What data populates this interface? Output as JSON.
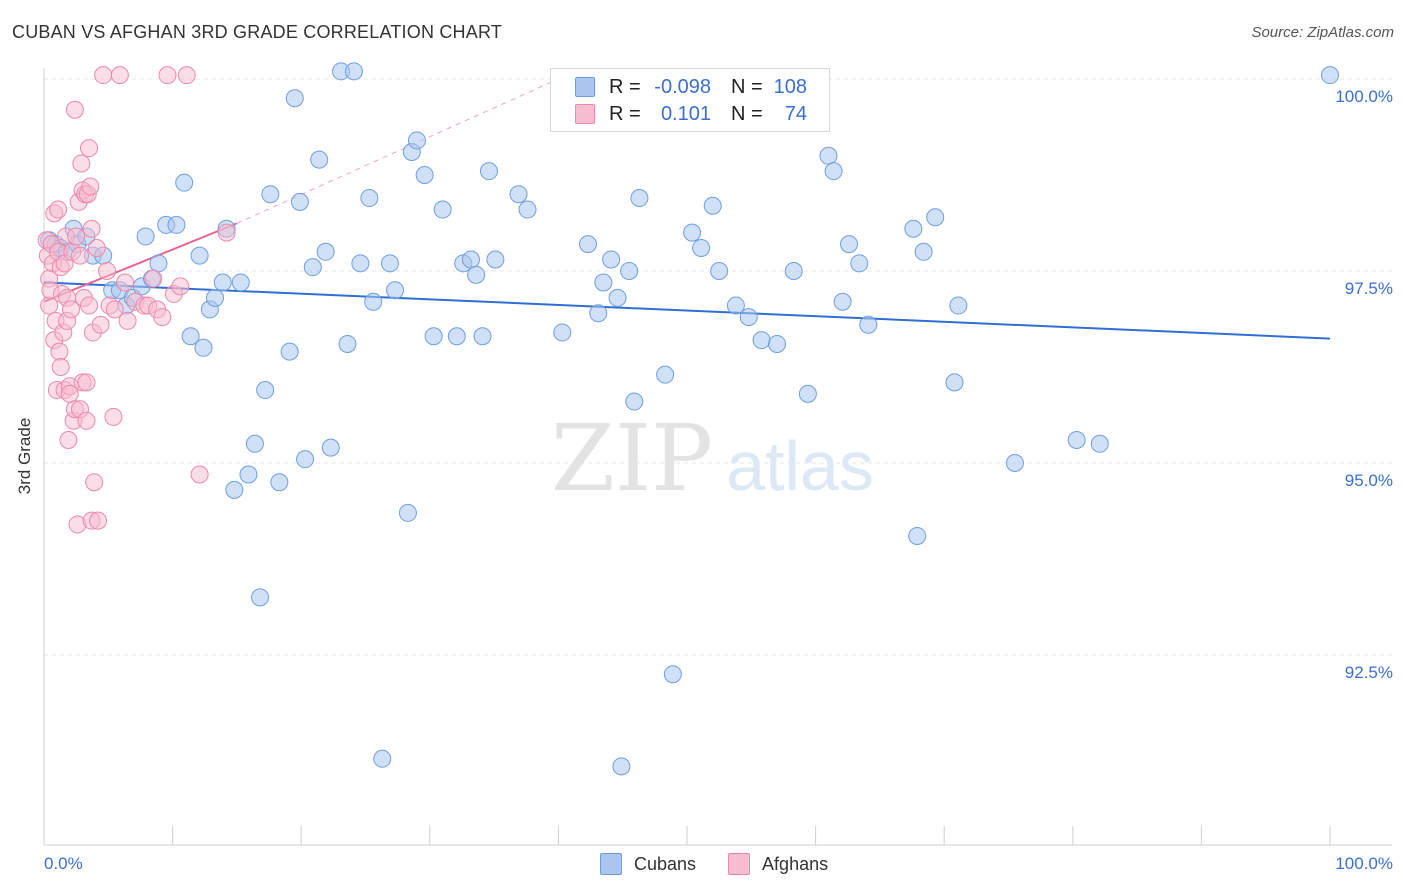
{
  "header": {
    "title": "CUBAN VS AFGHAN 3RD GRADE CORRELATION CHART",
    "source": "Source: ZipAtlas.com"
  },
  "watermark": {
    "zip": "ZIP",
    "atlas": "atlas"
  },
  "legend": {
    "rows": [
      {
        "series": "Cubans",
        "r_label": "R =",
        "r_value": "-0.098",
        "n_label": "N =",
        "n_value": "108",
        "color": "#aac6ee",
        "border": "#6f9ee0"
      },
      {
        "series": "Afghans",
        "r_label": "R =",
        "r_value": "0.101",
        "n_label": "N =",
        "n_value": "74",
        "color": "#f7bcd0",
        "border": "#ec89a9"
      }
    ]
  },
  "bottom_legend": {
    "items": [
      "Cubans",
      "Afghans"
    ]
  },
  "chart_data": {
    "type": "scatter",
    "title": "CUBAN VS AFGHAN 3RD GRADE CORRELATION CHART",
    "xlabel": "",
    "ylabel": "3rd Grade",
    "xlim": [
      0,
      100
    ],
    "ylim": [
      90.1,
      100.2
    ],
    "x_tick_labels": [
      "0.0%",
      "100.0%"
    ],
    "y_ticks": [
      92.5,
      95.0,
      97.5,
      100.0
    ],
    "y_tick_labels": [
      "92.5%",
      "95.0%",
      "97.5%",
      "100.0%"
    ],
    "grid": true,
    "series": [
      {
        "name": "Cubans",
        "color": "#aac6ee",
        "stroke": "#6f9ee0",
        "trend": {
          "x": [
            0,
            100
          ],
          "y": [
            97.35,
            96.62
          ],
          "color": "#2f6fd1"
        },
        "points": [
          [
            0.4,
            97.9
          ],
          [
            0.9,
            97.85
          ],
          [
            1.3,
            97.8
          ],
          [
            1.8,
            97.75
          ],
          [
            2.3,
            98.05
          ],
          [
            2.6,
            97.85
          ],
          [
            3.3,
            97.95
          ],
          [
            3.8,
            97.7
          ],
          [
            4.6,
            97.7
          ],
          [
            5.3,
            97.25
          ],
          [
            5.9,
            97.25
          ],
          [
            6.4,
            97.05
          ],
          [
            6.9,
            97.15
          ],
          [
            7.6,
            97.3
          ],
          [
            7.9,
            97.95
          ],
          [
            8.4,
            97.4
          ],
          [
            8.9,
            97.6
          ],
          [
            9.5,
            98.1
          ],
          [
            10.3,
            98.1
          ],
          [
            10.9,
            98.65
          ],
          [
            11.4,
            96.65
          ],
          [
            12.1,
            97.7
          ],
          [
            12.4,
            96.5
          ],
          [
            12.9,
            97.0
          ],
          [
            13.3,
            97.15
          ],
          [
            13.9,
            97.35
          ],
          [
            14.2,
            98.05
          ],
          [
            14.8,
            94.65
          ],
          [
            15.3,
            97.35
          ],
          [
            15.9,
            94.85
          ],
          [
            16.4,
            95.25
          ],
          [
            16.8,
            93.25
          ],
          [
            17.2,
            95.95
          ],
          [
            17.6,
            98.5
          ],
          [
            18.3,
            94.75
          ],
          [
            19.1,
            96.45
          ],
          [
            19.5,
            99.75
          ],
          [
            19.9,
            98.4
          ],
          [
            20.3,
            95.05
          ],
          [
            20.9,
            97.55
          ],
          [
            21.4,
            98.95
          ],
          [
            21.9,
            97.75
          ],
          [
            22.3,
            95.2
          ],
          [
            23.1,
            100.1
          ],
          [
            23.6,
            96.55
          ],
          [
            24.1,
            100.1
          ],
          [
            24.6,
            97.6
          ],
          [
            25.3,
            98.45
          ],
          [
            25.6,
            97.1
          ],
          [
            26.3,
            91.15
          ],
          [
            26.9,
            97.6
          ],
          [
            27.3,
            97.25
          ],
          [
            28.3,
            94.35
          ],
          [
            28.6,
            99.05
          ],
          [
            29.0,
            99.2
          ],
          [
            29.6,
            98.75
          ],
          [
            30.3,
            96.65
          ],
          [
            31.0,
            98.3
          ],
          [
            32.1,
            96.65
          ],
          [
            32.6,
            97.6
          ],
          [
            33.2,
            97.65
          ],
          [
            33.6,
            97.45
          ],
          [
            34.1,
            96.65
          ],
          [
            34.6,
            98.8
          ],
          [
            35.1,
            97.65
          ],
          [
            36.9,
            98.5
          ],
          [
            37.6,
            98.3
          ],
          [
            40.3,
            96.7
          ],
          [
            42.3,
            97.85
          ],
          [
            43.1,
            96.95
          ],
          [
            43.5,
            97.35
          ],
          [
            44.1,
            97.65
          ],
          [
            44.6,
            97.15
          ],
          [
            44.9,
            91.05
          ],
          [
            45.5,
            97.5
          ],
          [
            45.9,
            95.8
          ],
          [
            46.3,
            98.45
          ],
          [
            48.3,
            96.15
          ],
          [
            48.9,
            92.25
          ],
          [
            50.4,
            98.0
          ],
          [
            51.1,
            97.8
          ],
          [
            52.0,
            98.35
          ],
          [
            52.5,
            97.5
          ],
          [
            53.8,
            97.05
          ],
          [
            54.8,
            96.9
          ],
          [
            55.8,
            96.6
          ],
          [
            57.0,
            96.55
          ],
          [
            58.3,
            97.5
          ],
          [
            59.4,
            95.9
          ],
          [
            61.0,
            99.0
          ],
          [
            61.4,
            98.8
          ],
          [
            62.1,
            97.1
          ],
          [
            62.6,
            97.85
          ],
          [
            63.4,
            97.6
          ],
          [
            64.1,
            96.8
          ],
          [
            67.6,
            98.05
          ],
          [
            67.9,
            94.05
          ],
          [
            68.4,
            97.75
          ],
          [
            69.3,
            98.2
          ],
          [
            70.8,
            96.05
          ],
          [
            71.1,
            97.05
          ],
          [
            75.5,
            95.0
          ],
          [
            80.3,
            95.3
          ],
          [
            82.1,
            95.25
          ],
          [
            100.0,
            100.05
          ]
        ]
      },
      {
        "name": "Afghans",
        "color": "#f7bcd0",
        "stroke": "#ec89a9",
        "trend": {
          "x": [
            0,
            15
          ],
          "y": [
            97.1,
            98.12
          ],
          "color": "#e8658e",
          "dashed_extension_to": [
            40,
            100.0
          ]
        },
        "points": [
          [
            0.2,
            97.9
          ],
          [
            0.3,
            97.7
          ],
          [
            0.4,
            97.4
          ],
          [
            0.4,
            97.05
          ],
          [
            0.5,
            97.25
          ],
          [
            0.6,
            97.85
          ],
          [
            0.7,
            97.6
          ],
          [
            0.8,
            96.6
          ],
          [
            0.8,
            98.25
          ],
          [
            0.9,
            96.85
          ],
          [
            1.0,
            95.95
          ],
          [
            1.1,
            98.3
          ],
          [
            1.1,
            97.75
          ],
          [
            1.2,
            96.45
          ],
          [
            1.3,
            96.25
          ],
          [
            1.3,
            97.55
          ],
          [
            1.4,
            97.2
          ],
          [
            1.5,
            96.7
          ],
          [
            1.6,
            97.6
          ],
          [
            1.6,
            95.95
          ],
          [
            1.7,
            97.95
          ],
          [
            1.8,
            97.15
          ],
          [
            1.8,
            96.85
          ],
          [
            1.9,
            95.3
          ],
          [
            2.0,
            96.0
          ],
          [
            2.0,
            95.9
          ],
          [
            2.1,
            97.0
          ],
          [
            2.2,
            97.75
          ],
          [
            2.3,
            95.55
          ],
          [
            2.4,
            95.7
          ],
          [
            2.4,
            99.6
          ],
          [
            2.5,
            97.95
          ],
          [
            2.6,
            94.2
          ],
          [
            2.7,
            98.4
          ],
          [
            2.8,
            97.7
          ],
          [
            2.8,
            95.7
          ],
          [
            2.9,
            98.9
          ],
          [
            3.0,
            98.55
          ],
          [
            3.0,
            96.05
          ],
          [
            3.1,
            97.15
          ],
          [
            3.2,
            98.5
          ],
          [
            3.3,
            96.05
          ],
          [
            3.3,
            95.55
          ],
          [
            3.4,
            98.5
          ],
          [
            3.5,
            99.1
          ],
          [
            3.5,
            97.05
          ],
          [
            3.6,
            98.6
          ],
          [
            3.7,
            98.05
          ],
          [
            3.7,
            94.25
          ],
          [
            3.8,
            96.7
          ],
          [
            3.9,
            94.75
          ],
          [
            4.1,
            97.8
          ],
          [
            4.2,
            94.25
          ],
          [
            4.4,
            96.8
          ],
          [
            4.6,
            100.05
          ],
          [
            4.9,
            97.5
          ],
          [
            5.1,
            97.05
          ],
          [
            5.4,
            95.6
          ],
          [
            5.5,
            97.0
          ],
          [
            5.9,
            100.05
          ],
          [
            6.3,
            97.35
          ],
          [
            6.5,
            96.85
          ],
          [
            7.1,
            97.1
          ],
          [
            7.8,
            97.05
          ],
          [
            8.1,
            97.05
          ],
          [
            8.5,
            97.4
          ],
          [
            8.8,
            97.0
          ],
          [
            9.2,
            96.9
          ],
          [
            9.6,
            100.05
          ],
          [
            10.1,
            97.2
          ],
          [
            10.6,
            97.3
          ],
          [
            11.1,
            100.05
          ],
          [
            12.1,
            94.85
          ],
          [
            14.2,
            98.0
          ]
        ]
      }
    ]
  }
}
